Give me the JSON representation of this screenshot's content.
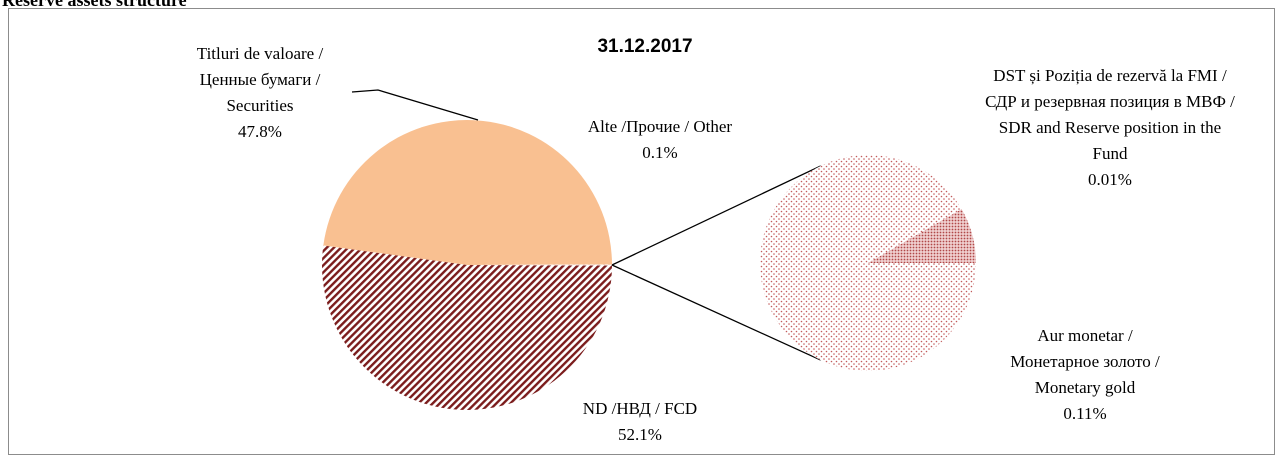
{
  "chart_data": {
    "type": "pie_of_pie",
    "heading": "Reserve assets structure",
    "title": "31.12.2017",
    "main": {
      "categories": [
        [
          "Titluri de valoare /",
          "Ценные бумаги /",
          "Securities"
        ],
        [
          "ND /НВД / FCD"
        ],
        [
          "Alte /Прочие / Other"
        ]
      ],
      "values": [
        47.8,
        52.1,
        0.1
      ],
      "value_labels": [
        "47.8%",
        "52.1%",
        "0.1%"
      ],
      "colors": [
        "#f9c091",
        "#7b1c1c",
        "#c25a5a"
      ],
      "fills": [
        "solid",
        "hatch",
        "dots"
      ]
    },
    "secondary": {
      "categories": [
        [
          "DST și Poziția de rezervă la FMI /",
          "СДР и резервная позиция в МВФ /",
          "SDR and Reserve position in the",
          "Fund"
        ],
        [
          "Aur monetar /",
          "Монетарное золото /",
          "Monetary gold"
        ]
      ],
      "values": [
        0.01,
        0.11
      ],
      "value_labels": [
        "0.01%",
        "0.11%"
      ],
      "colors": [
        "#b04848",
        "#c25a5a"
      ],
      "fills": [
        "dense-dots",
        "dots"
      ]
    }
  }
}
